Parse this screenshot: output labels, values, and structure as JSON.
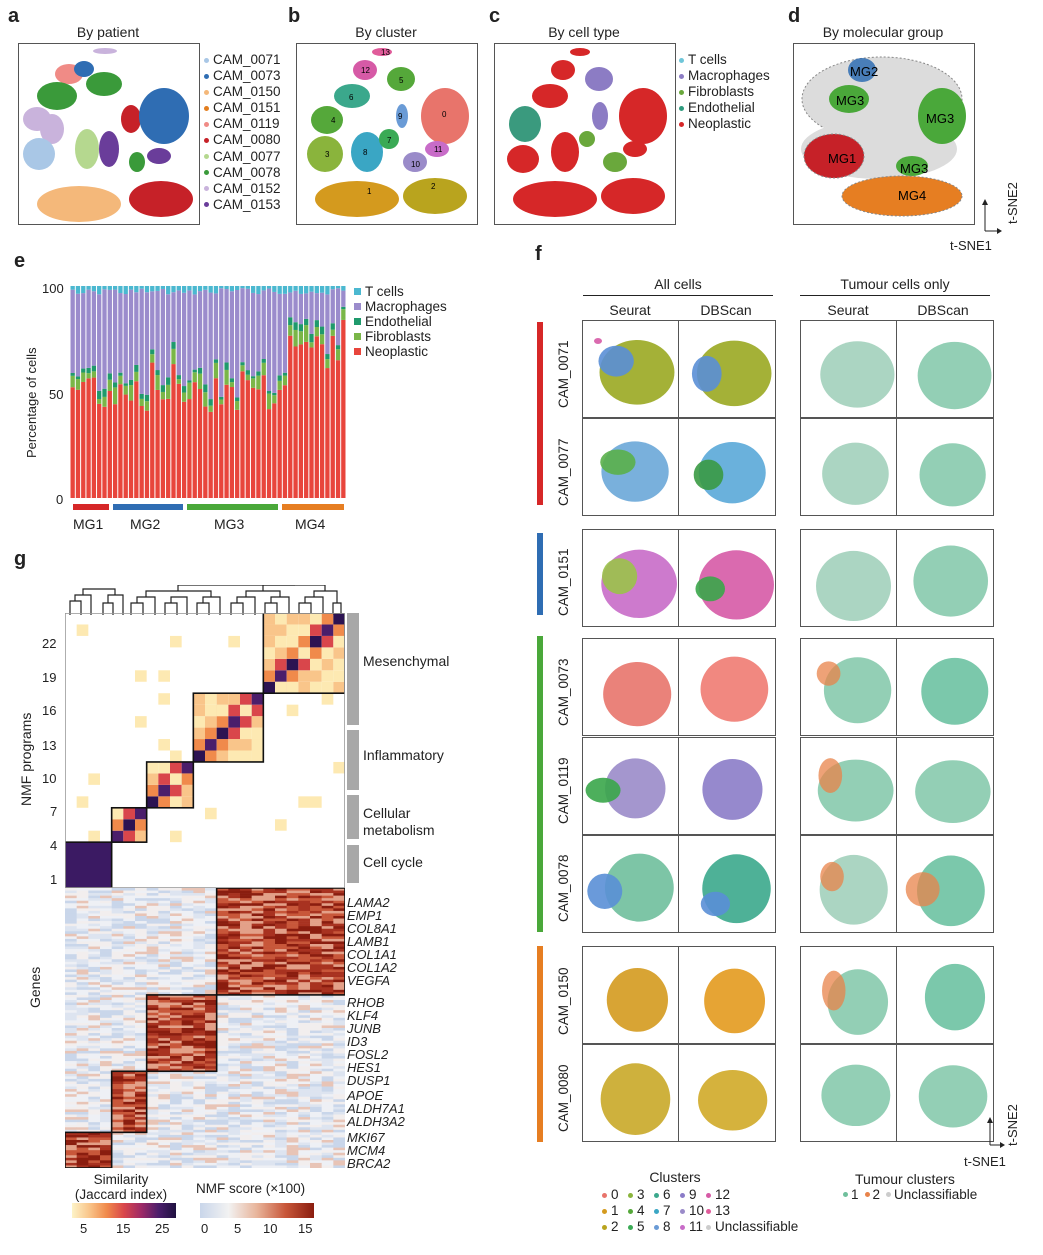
{
  "panels": {
    "a": {
      "label": "a",
      "title": "By patient"
    },
    "b": {
      "label": "b",
      "title": "By cluster"
    },
    "c": {
      "label": "c",
      "title": "By cell type"
    },
    "d": {
      "label": "d",
      "title": "By molecular group"
    },
    "e": {
      "label": "e"
    },
    "f": {
      "label": "f"
    },
    "g": {
      "label": "g"
    }
  },
  "patient_legend": [
    {
      "name": "CAM_0071",
      "color": "#a9c7e6"
    },
    {
      "name": "CAM_0073",
      "color": "#2f6db3"
    },
    {
      "name": "CAM_0150",
      "color": "#f4b87a"
    },
    {
      "name": "CAM_0151",
      "color": "#e37e1f"
    },
    {
      "name": "CAM_0119",
      "color": "#f08b86"
    },
    {
      "name": "CAM_0080",
      "color": "#c62128"
    },
    {
      "name": "CAM_0077",
      "color": "#b5d88f"
    },
    {
      "name": "CAM_0078",
      "color": "#3a9a3a"
    },
    {
      "name": "CAM_0152",
      "color": "#c9b3dc"
    },
    {
      "name": "CAM_0153",
      "color": "#6a3d9a"
    }
  ],
  "cluster_numbers": [
    "0",
    "1",
    "2",
    "3",
    "4",
    "5",
    "6",
    "7",
    "8",
    "9",
    "10",
    "11",
    "12",
    "13"
  ],
  "celltype_legend": [
    {
      "name": "T cells",
      "color": "#6fc6d9"
    },
    {
      "name": "Macrophages",
      "color": "#8c7cc4"
    },
    {
      "name": "Fibroblasts",
      "color": "#6aa83c"
    },
    {
      "name": "Endothelial",
      "color": "#2e9b7e"
    },
    {
      "name": "Neoplastic",
      "color": "#d62728"
    }
  ],
  "molecular_labels": [
    "MG2",
    "MG3",
    "MG3",
    "MG1",
    "MG3",
    "MG4"
  ],
  "tsne_axes": {
    "x": "t-SNE1",
    "y": "t-SNE2"
  },
  "panel_e": {
    "ylabel": "Percentage of cells",
    "yticks": [
      "100",
      "50",
      "0"
    ],
    "legend": [
      {
        "name": "T cells",
        "color": "#4bb8d0"
      },
      {
        "name": "Macrophages",
        "color": "#9b8ccc"
      },
      {
        "name": "Endothelial",
        "color": "#1f9a6c"
      },
      {
        "name": "Fibroblasts",
        "color": "#7ab648"
      },
      {
        "name": "Neoplastic",
        "color": "#e8453c"
      }
    ],
    "groups": [
      {
        "name": "MG1",
        "color": "#d62728"
      },
      {
        "name": "MG2",
        "color": "#2f6db3"
      },
      {
        "name": "MG3",
        "color": "#4aa83a"
      },
      {
        "name": "MG4",
        "color": "#e67e22"
      }
    ]
  },
  "chart_data": {
    "type": "bar",
    "stacked": true,
    "ylabel": "Percentage of cells",
    "ylim": [
      0,
      100
    ],
    "series_order": [
      "Neoplastic",
      "Fibroblasts",
      "Endothelial",
      "Macrophages",
      "T cells"
    ],
    "group_sizes": {
      "MG1": 8,
      "MG2": 14,
      "MG3": 18,
      "MG4": 12
    },
    "typical_composition_percent": {
      "Neoplastic": 56,
      "Fibroblasts": 4,
      "Endothelial": 2,
      "Macrophages": 36,
      "T cells": 2
    }
  },
  "panel_f": {
    "header_left": "All cells",
    "header_right": "Tumour cells only",
    "columns": [
      "Seurat",
      "DBScan",
      "Seurat",
      "DBScan"
    ],
    "rows": [
      {
        "name": "CAM_0071",
        "group": 0
      },
      {
        "name": "CAM_0077",
        "group": 0
      },
      {
        "name": "CAM_0151",
        "group": 1
      },
      {
        "name": "CAM_0073",
        "group": 2
      },
      {
        "name": "CAM_0119",
        "group": 2
      },
      {
        "name": "CAM_0078",
        "group": 2
      },
      {
        "name": "CAM_0150",
        "group": 3
      },
      {
        "name": "CAM_0080",
        "group": 3
      }
    ],
    "group_colors": [
      "#d62728",
      "#2f6db3",
      "#4aa83a",
      "#e67e22"
    ],
    "clusters_title": "Clusters",
    "clusters_legend": [
      {
        "name": "0",
        "color": "#e8746b"
      },
      {
        "name": "3",
        "color": "#8ab43c"
      },
      {
        "name": "6",
        "color": "#3ba88c"
      },
      {
        "name": "9",
        "color": "#8b7cc8"
      },
      {
        "name": "12",
        "color": "#d65aa6"
      },
      {
        "name": "1",
        "color": "#d49a1e"
      },
      {
        "name": "4",
        "color": "#55a83a"
      },
      {
        "name": "7",
        "color": "#3aa6c4"
      },
      {
        "name": "10",
        "color": "#9a8bc9"
      },
      {
        "name": "13",
        "color": "#e05c9a"
      },
      {
        "name": "2",
        "color": "#b9a41e"
      },
      {
        "name": "5",
        "color": "#3aaa55"
      },
      {
        "name": "8",
        "color": "#6a9bd6"
      },
      {
        "name": "11",
        "color": "#c86cc8"
      },
      {
        "name": "Unclassifiable",
        "color": "#cccccc"
      }
    ],
    "tumour_title": "Tumour clusters",
    "tumour_legend": [
      {
        "name": "1",
        "color": "#6fbf9c"
      },
      {
        "name": "2",
        "color": "#e8834a"
      },
      {
        "name": "Unclassifiable",
        "color": "#cccccc"
      }
    ]
  },
  "panel_g": {
    "ylabel_top": "NMF programs",
    "ylabel_bottom": "Genes",
    "yticks": [
      "22",
      "19",
      "16",
      "13",
      "10",
      "7",
      "4",
      "1"
    ],
    "programs": [
      "Mesenchymal",
      "Inflammatory",
      "Cellular",
      "metabolism",
      "Cell cycle"
    ],
    "genes": [
      "LAMA2",
      "EMP1",
      "COL8A1",
      "LAMB1",
      "COL1A1",
      "COL1A2",
      "VEGFA",
      "RHOB",
      "KLF4",
      "JUNB",
      "ID3",
      "FOSL2",
      "HES1",
      "DUSP1",
      "APOE",
      "ALDH7A1",
      "ALDH3A2",
      "MKI67",
      "MCM4",
      "BRCA2"
    ],
    "similarity_title1": "Similarity",
    "similarity_title2": "(Jaccard index)",
    "similarity_ticks": [
      "5",
      "15",
      "25"
    ],
    "nmf_title": "NMF score (×100)",
    "nmf_ticks": [
      "0",
      "5",
      "10",
      "15"
    ]
  }
}
